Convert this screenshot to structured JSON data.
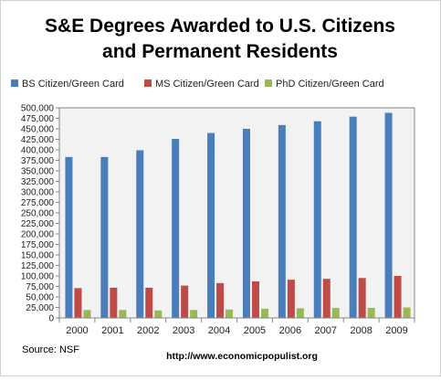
{
  "chart_data": {
    "type": "bar",
    "title_lines": [
      "S&E Degrees Awarded to U.S. Citizens",
      "and Permanent Residents"
    ],
    "categories": [
      "2000",
      "2001",
      "2002",
      "2003",
      "2004",
      "2005",
      "2006",
      "2007",
      "2008",
      "2009"
    ],
    "series": [
      {
        "name": "BS Citizen/Green Card",
        "color": "#4a7ebb",
        "values": [
          383000,
          383000,
          399000,
          426000,
          440000,
          450000,
          459000,
          468000,
          479000,
          488000
        ]
      },
      {
        "name": "MS Citizen/Green Card",
        "color": "#be4b48",
        "values": [
          71000,
          72000,
          72000,
          77000,
          83000,
          87000,
          91000,
          93000,
          95000,
          100000
        ]
      },
      {
        "name": "PhD Citizen/Green Card",
        "color": "#98b954",
        "values": [
          19000,
          19000,
          18000,
          19000,
          20000,
          22000,
          23000,
          24000,
          24000,
          25000
        ]
      }
    ],
    "yticks": [
      "0",
      "25,000",
      "50,000",
      "75,000",
      "100,000",
      "125,000",
      "150,000",
      "175,000",
      "200,000",
      "225,000",
      "250,000",
      "275,000",
      "300,000",
      "325,000",
      "350,000",
      "375,000",
      "400,000",
      "425,000",
      "450,000",
      "475,000",
      "500,000"
    ],
    "ylim": [
      0,
      500000
    ],
    "ystep": 25000,
    "grid": false,
    "legend_position": "top"
  },
  "footer": {
    "source": "Source:  NSF",
    "url": "http://www.economicpopulist.org"
  },
  "colors": {
    "plot_background": "#f2f2f2",
    "axis": "#868686"
  }
}
